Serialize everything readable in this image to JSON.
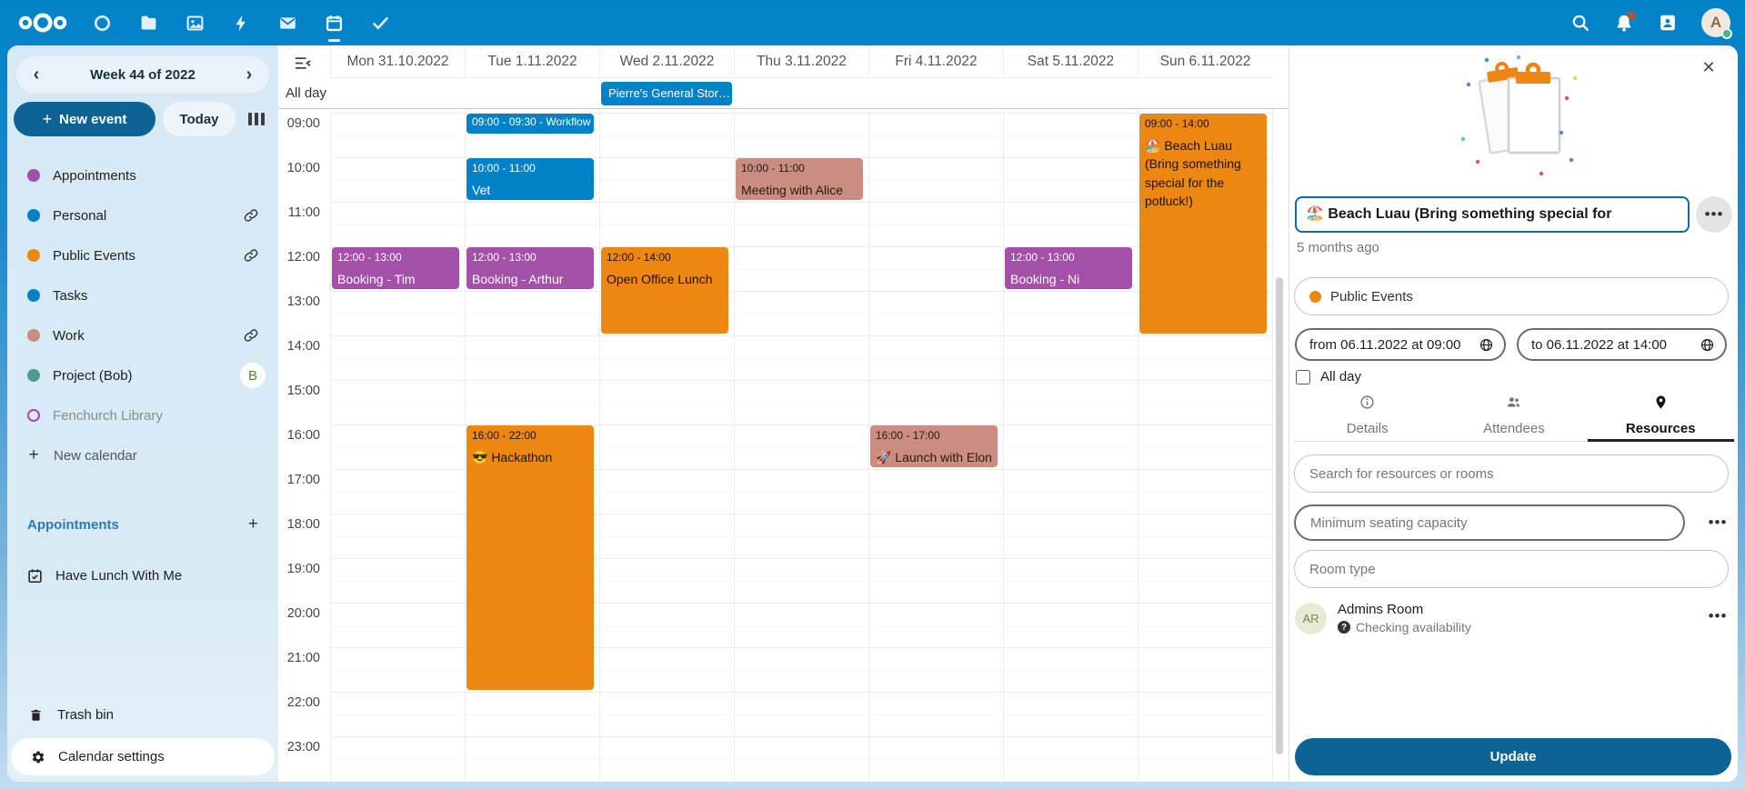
{
  "palette": {
    "primary": "#0082c9",
    "primary_dark": "#0d6394",
    "purple": "#a44fa8",
    "orange": "#ec8712",
    "salmon": "#ca8d80",
    "teal": "#4d9b8f"
  },
  "topbar": {
    "apps": [
      "dashboard",
      "files",
      "photos",
      "activity",
      "mail",
      "calendar",
      "tasks"
    ],
    "active_app": "calendar",
    "right_icons": [
      "search",
      "notifications",
      "contacts",
      "avatar"
    ],
    "notification_badge": true,
    "avatar_letter": "A"
  },
  "sidebar": {
    "week_label": "Week 44 of 2022",
    "prev_icon": "‹",
    "next_icon": "›",
    "new_event_label": "New event",
    "today_label": "Today",
    "calendars": [
      {
        "label": "Appointments",
        "color": "#a44fa8",
        "style": "dot"
      },
      {
        "label": "Personal",
        "color": "#0082c9",
        "style": "dot",
        "shared": true
      },
      {
        "label": "Public Events",
        "color": "#ec8712",
        "style": "dot",
        "shared": true
      },
      {
        "label": "Tasks",
        "color": "#0082c9",
        "style": "dot"
      },
      {
        "label": "Work",
        "color": "#ca8d80",
        "style": "dot",
        "shared": true
      },
      {
        "label": "Project (Bob)",
        "color": "#4d9b8f",
        "style": "dot",
        "badge": "B"
      },
      {
        "label": "Fenchurch Library",
        "color": "#b53db5",
        "style": "outline",
        "muted": true
      }
    ],
    "new_calendar_label": "New calendar",
    "appointments_heading": "Appointments",
    "appointment_items": [
      "Have Lunch With Me"
    ],
    "trash_label": "Trash bin",
    "settings_label": "Calendar settings"
  },
  "calendar": {
    "days": [
      "Mon 31.10.2022",
      "Tue 1.11.2022",
      "Wed 2.11.2022",
      "Thu 3.11.2022",
      "Fri 4.11.2022",
      "Sat 5.11.2022",
      "Sun 6.11.2022"
    ],
    "allday_label": "All day",
    "allday_events": [
      {
        "day": 2,
        "title": "Pierre's General Stor…",
        "bg": "#0082c9",
        "fg": "#ffffff"
      }
    ],
    "times": [
      "09:00",
      "10:00",
      "11:00",
      "12:00",
      "13:00",
      "14:00",
      "15:00",
      "16:00",
      "17:00",
      "18:00",
      "19:00",
      "20:00",
      "21:00",
      "22:00",
      "23:00"
    ],
    "events": [
      {
        "day": 1,
        "start": "09:00",
        "end": "09:30",
        "title": "Workflow",
        "bg": "#0082c9",
        "fg": "#ffffff",
        "inline": true
      },
      {
        "day": 1,
        "start": "10:00",
        "end": "11:00",
        "title": "Vet",
        "bg": "#0082c9",
        "fg": "#ffffff"
      },
      {
        "day": 3,
        "start": "10:00",
        "end": "11:00",
        "title": "Meeting with Alice",
        "bg": "#ca8d80",
        "fg": "#2b1a15"
      },
      {
        "day": 0,
        "start": "12:00",
        "end": "13:00",
        "title": "Booking - Tim (Wizard)",
        "bg": "#a44fa8",
        "fg": "#ffffff"
      },
      {
        "day": 1,
        "start": "12:00",
        "end": "13:00",
        "title": "Booking - Arthur Dent",
        "bg": "#a44fa8",
        "fg": "#ffffff"
      },
      {
        "day": 5,
        "start": "12:00",
        "end": "13:00",
        "title": "Booking - Ni (Knights",
        "bg": "#a44fa8",
        "fg": "#ffffff"
      },
      {
        "day": 2,
        "start": "12:00",
        "end": "14:00",
        "title": "Open Office Lunch",
        "bg": "#ec8712",
        "fg": "#1e1204"
      },
      {
        "day": 6,
        "start": "09:00",
        "end": "14:00",
        "title": "🏖️ Beach Luau (Bring something special for the potluck!)",
        "bg": "#ec8712",
        "fg": "#1e1204"
      },
      {
        "day": 1,
        "start": "16:00",
        "end": "22:00",
        "title": "😎 Hackathon",
        "bg": "#ec8712",
        "fg": "#1e1204"
      },
      {
        "day": 4,
        "start": "16:00",
        "end": "17:00",
        "title": "🚀 Launch with Elon",
        "bg": "#ca8d80",
        "fg": "#2b1a15"
      }
    ]
  },
  "panel": {
    "title": "🏖️ Beach Luau (Bring something special for",
    "modified": "5 months ago",
    "category": "Public Events",
    "category_color": "#ec8712",
    "from_value": "from 06.11.2022 at 09:00",
    "to_value": "to 06.11.2022 at 14:00",
    "allday_label": "All day",
    "allday_checked": false,
    "tabs": [
      {
        "label": "Details",
        "icon": "info"
      },
      {
        "label": "Attendees",
        "icon": "attendees"
      },
      {
        "label": "Resources",
        "icon": "location"
      }
    ],
    "active_tab": "Resources",
    "search_placeholder": "Search for resources or rooms",
    "seating_placeholder": "Minimum seating capacity",
    "roomtype_placeholder": "Room type",
    "resource": {
      "initials": "AR",
      "name": "Admins Room",
      "status": "Checking availability"
    },
    "update_label": "Update"
  }
}
